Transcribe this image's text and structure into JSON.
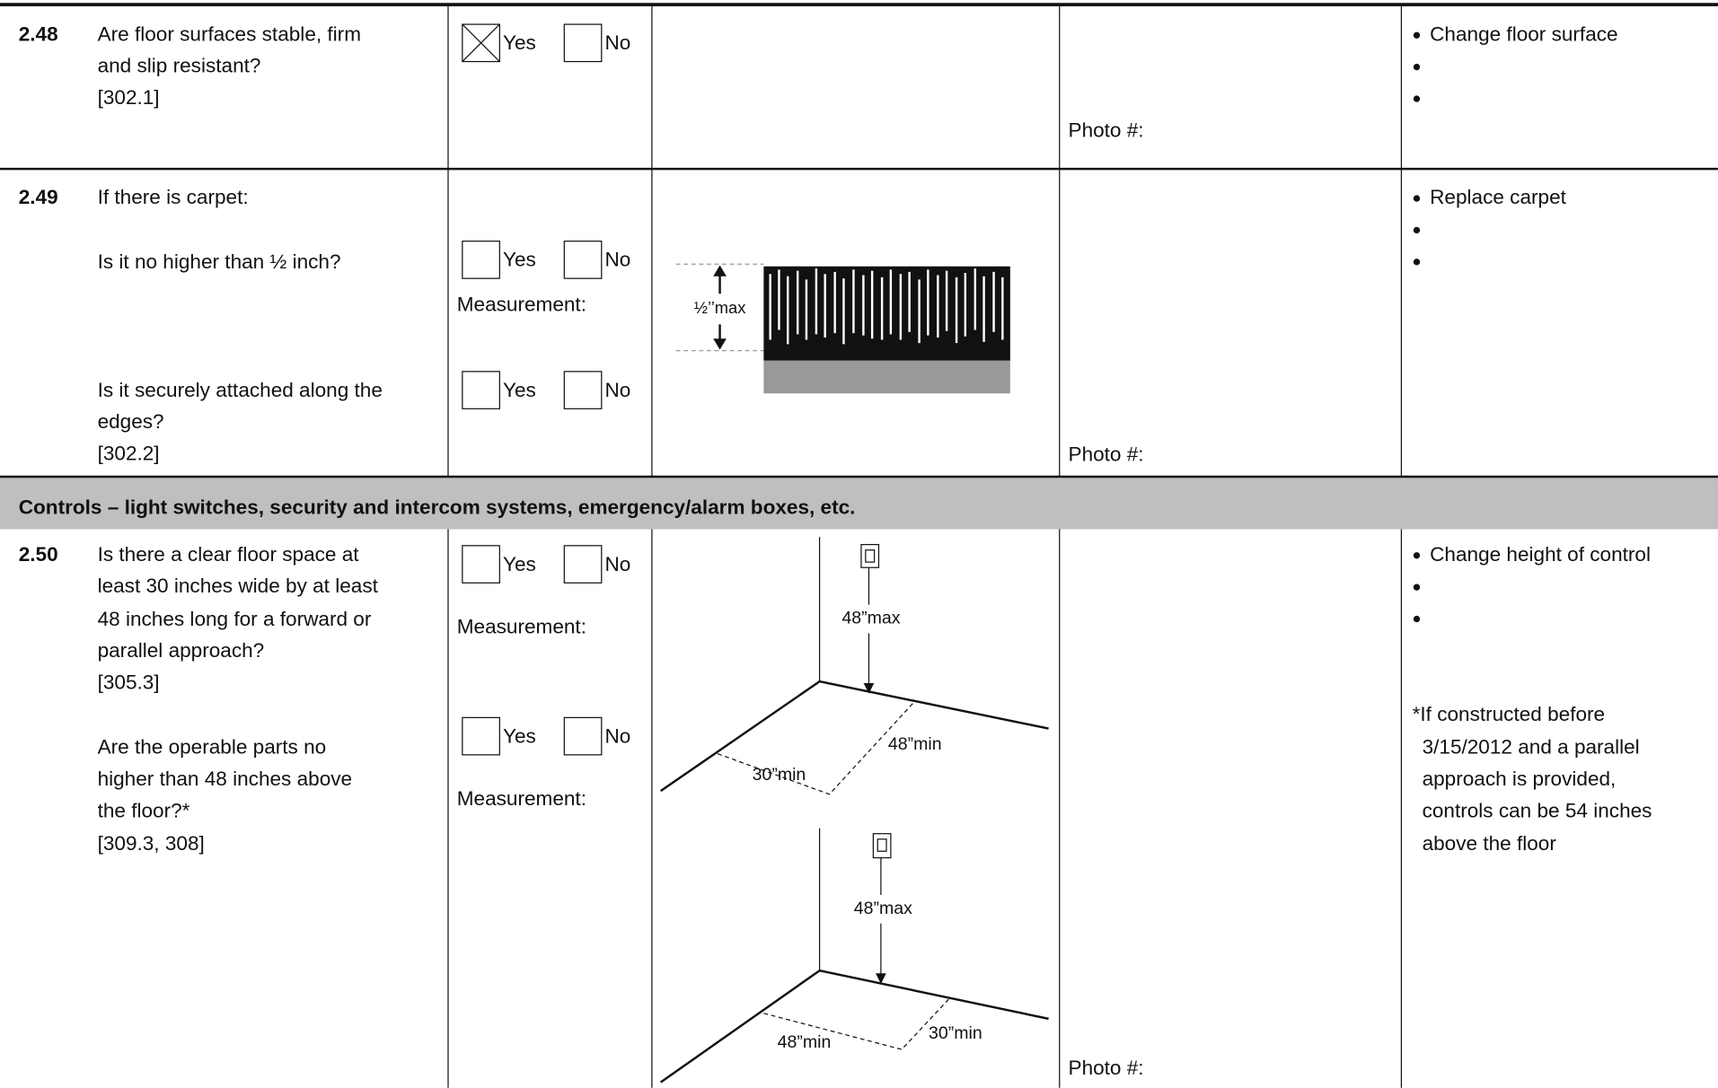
{
  "rows": [
    {
      "number": "2.48",
      "question": [
        "Are floor surfaces stable, firm",
        "and slip resistant?",
        "[302.1]"
      ],
      "answers": [
        {
          "options": [
            {
              "label": "Yes",
              "checked": true
            },
            {
              "label": "No",
              "checked": false
            }
          ]
        }
      ],
      "photo": "Photo #:",
      "suggestions": [
        "Change floor surface"
      ]
    },
    {
      "number": "2.49",
      "question": [
        "If there is carpet:",
        "Is it no higher than ½ inch?",
        "Is it securely attached along the",
        "edges?",
        "[302.2]"
      ],
      "answers": [
        {
          "options": [
            {
              "label": "Yes",
              "checked": false
            },
            {
              "label": "No",
              "checked": false
            }
          ],
          "measurement": "Measurement:"
        },
        {
          "options": [
            {
              "label": "Yes",
              "checked": false
            },
            {
              "label": "No",
              "checked": false
            }
          ]
        }
      ],
      "diagram_labels": [
        "½’’max"
      ],
      "photo": "Photo #:",
      "suggestions": [
        "Replace carpet"
      ]
    },
    {
      "section": "Controls – light switches, security and intercom systems, emergency/alarm boxes, etc."
    },
    {
      "number": "2.50",
      "question": [
        "Is there a clear floor space at",
        "least 30 inches wide by at least",
        "48 inches long for a forward or",
        "parallel approach?",
        "[305.3]",
        "Are the operable parts no",
        "higher than 48 inches above",
        "the floor?*",
        "[309.3, 308]"
      ],
      "answers": [
        {
          "options": [
            {
              "label": "Yes",
              "checked": false
            },
            {
              "label": "No",
              "checked": false
            }
          ],
          "measurement": "Measurement:"
        },
        {
          "options": [
            {
              "label": "Yes",
              "checked": false
            },
            {
              "label": "No",
              "checked": false
            }
          ],
          "measurement": "Measurement:"
        }
      ],
      "diagram_labels": [
        "48”max",
        "48”min",
        "30”min",
        "48”max",
        "48”min",
        "30”min"
      ],
      "photo": "Photo #:",
      "suggestions": [
        "Change height of control"
      ],
      "note": [
        "*If constructed before",
        "3/15/2012 and a parallel",
        "approach is provided,",
        "controls can be 54 inches",
        "above the floor"
      ]
    }
  ]
}
